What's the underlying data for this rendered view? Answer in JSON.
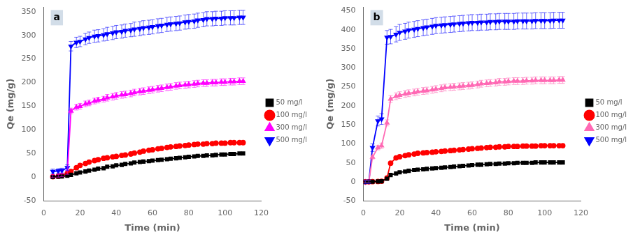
{
  "chart_data": [
    {
      "type": "line",
      "annotations": [
        "a"
      ],
      "xlabel": "Time (min)",
      "ylabel": "Qe (mg/g)",
      "xlim": [
        0,
        120
      ],
      "xticks": [
        0,
        20,
        40,
        60,
        80,
        100,
        120
      ],
      "ylim": [
        -50,
        360
      ],
      "yticks": [
        -50,
        0,
        50,
        100,
        150,
        200,
        250,
        300,
        350
      ],
      "grid": false,
      "legend": "right",
      "series": [
        {
          "name": "50 mg/l",
          "color": "#000000",
          "marker": "square",
          "line_style": "solid",
          "x": [
            5,
            8,
            10,
            13,
            15,
            18,
            20,
            23,
            25,
            28,
            30,
            33,
            35,
            38,
            40,
            43,
            45,
            48,
            50,
            53,
            55,
            58,
            60,
            63,
            65,
            68,
            70,
            73,
            75,
            78,
            80,
            83,
            85,
            88,
            90,
            93,
            95,
            98,
            100,
            103,
            105,
            108,
            110
          ],
          "values": [
            0.5,
            1.0,
            1.5,
            3,
            5,
            8,
            10,
            12,
            14,
            16,
            18,
            19,
            22,
            23,
            25,
            26,
            28,
            29,
            31,
            32,
            33,
            34,
            35,
            36,
            37,
            38,
            39,
            40,
            41,
            42,
            43,
            44,
            45,
            45,
            46,
            46,
            47,
            48,
            48,
            49,
            49,
            50,
            50
          ]
        },
        {
          "name": "100 mg/l",
          "color": "#ff0000",
          "marker": "circle",
          "line_style": "solid",
          "x": [
            5,
            8,
            10,
            13,
            15,
            18,
            20,
            23,
            25,
            28,
            30,
            33,
            35,
            38,
            40,
            43,
            45,
            48,
            50,
            53,
            55,
            58,
            60,
            63,
            65,
            68,
            70,
            73,
            75,
            78,
            80,
            83,
            85,
            88,
            90,
            93,
            95,
            98,
            100,
            103,
            105,
            108,
            110
          ],
          "values": [
            1,
            2,
            3,
            8,
            12,
            20,
            25,
            29,
            32,
            35,
            37,
            40,
            41,
            43,
            44,
            46,
            47,
            49,
            51,
            53,
            55,
            57,
            58,
            60,
            61,
            63,
            64,
            65,
            66,
            67,
            68,
            69,
            70,
            70,
            71,
            71,
            72,
            72,
            72,
            73,
            73,
            73,
            73
          ]
        },
        {
          "name": "300 mg/l",
          "color": "#ff00ff",
          "marker": "triangle-up",
          "line_style": "solid",
          "x": [
            5,
            8,
            10,
            13,
            15,
            18,
            20,
            23,
            25,
            28,
            30,
            33,
            35,
            38,
            40,
            43,
            45,
            48,
            50,
            53,
            55,
            58,
            60,
            63,
            65,
            68,
            70,
            73,
            75,
            78,
            80,
            83,
            85,
            88,
            90,
            93,
            95,
            98,
            100,
            103,
            105,
            108,
            110
          ],
          "values": [
            2,
            3,
            4,
            10,
            140,
            148,
            150,
            155,
            157,
            161,
            163,
            165,
            168,
            170,
            172,
            174,
            175,
            177,
            179,
            181,
            182,
            184,
            185,
            187,
            188,
            190,
            191,
            193,
            194,
            195,
            196,
            197,
            198,
            199,
            199,
            200,
            200,
            201,
            201,
            202,
            202,
            203,
            203
          ],
          "yerr": [
            3,
            3,
            3,
            4,
            6,
            6,
            6,
            6,
            6,
            6,
            6,
            6,
            7,
            7,
            7,
            7,
            7,
            7,
            7,
            7,
            7,
            7,
            7,
            7,
            7,
            7,
            7,
            7,
            7,
            7,
            7,
            7,
            7,
            7,
            7,
            7,
            7,
            7,
            7,
            7,
            7,
            7,
            7
          ]
        },
        {
          "name": "500 mg/l",
          "color": "#0000ff",
          "marker": "triangle-down",
          "line_style": "solid",
          "x": [
            5,
            8,
            10,
            13,
            15,
            18,
            20,
            23,
            25,
            28,
            30,
            33,
            35,
            38,
            40,
            43,
            45,
            48,
            50,
            53,
            55,
            58,
            60,
            63,
            65,
            68,
            70,
            73,
            75,
            78,
            80,
            83,
            85,
            88,
            90,
            93,
            95,
            98,
            100,
            103,
            105,
            108,
            110
          ],
          "values": [
            12,
            13,
            14,
            20,
            277,
            285,
            287,
            292,
            295,
            298,
            299,
            301,
            303,
            305,
            307,
            308,
            310,
            311,
            313,
            314,
            316,
            317,
            318,
            320,
            321,
            323,
            324,
            325,
            326,
            328,
            329,
            330,
            332,
            333,
            335,
            335,
            336,
            336,
            337,
            337,
            337,
            338,
            338
          ],
          "yerr": [
            5,
            5,
            5,
            6,
            10,
            11,
            11,
            12,
            12,
            13,
            13,
            13,
            14,
            14,
            14,
            14,
            14,
            14,
            15,
            15,
            15,
            15,
            15,
            15,
            15,
            15,
            15,
            15,
            15,
            15,
            15,
            15,
            15,
            15,
            15,
            15,
            15,
            15,
            15,
            15,
            15,
            15,
            15
          ]
        }
      ]
    },
    {
      "type": "line",
      "annotations": [
        "b"
      ],
      "xlabel": "Time (min)",
      "ylabel": "Qe (mg/g)",
      "xlim": [
        0,
        120
      ],
      "xticks": [
        0,
        20,
        40,
        60,
        80,
        100,
        120
      ],
      "ylim": [
        -50,
        460
      ],
      "yticks": [
        -50,
        0,
        50,
        100,
        150,
        200,
        250,
        300,
        350,
        400,
        450
      ],
      "grid": false,
      "legend": "right",
      "series": [
        {
          "name": "50 mg/l",
          "color": "#000000",
          "marker": "square",
          "line_style": "solid",
          "x": [
            1,
            3,
            5,
            8,
            10,
            13,
            15,
            18,
            20,
            23,
            25,
            28,
            30,
            33,
            35,
            38,
            40,
            43,
            45,
            48,
            50,
            53,
            55,
            58,
            60,
            63,
            65,
            68,
            70,
            73,
            75,
            78,
            80,
            83,
            85,
            88,
            90,
            93,
            95,
            98,
            100,
            103,
            105,
            108,
            110
          ],
          "values": [
            0,
            0.2,
            0.5,
            1,
            1.5,
            8,
            18,
            22,
            25,
            27,
            29,
            31,
            32,
            33,
            34,
            35,
            36,
            37,
            38,
            39,
            40,
            41,
            42,
            43,
            44,
            45,
            45,
            46,
            47,
            47,
            48,
            48,
            49,
            49,
            50,
            50,
            50,
            50,
            51,
            51,
            51,
            51,
            51,
            51,
            51
          ]
        },
        {
          "name": "100 mg/l",
          "color": "#ff0000",
          "marker": "circle",
          "line_style": "solid",
          "x": [
            1,
            3,
            5,
            8,
            10,
            13,
            15,
            18,
            20,
            23,
            25,
            28,
            30,
            33,
            35,
            38,
            40,
            43,
            45,
            48,
            50,
            53,
            55,
            58,
            60,
            63,
            65,
            68,
            70,
            73,
            75,
            78,
            80,
            83,
            85,
            88,
            90,
            93,
            95,
            98,
            100,
            103,
            105,
            108,
            110
          ],
          "values": [
            0,
            0.2,
            0.5,
            1,
            1.5,
            10,
            49,
            63,
            66,
            69,
            71,
            73,
            75,
            76,
            77,
            78,
            79,
            80,
            81,
            82,
            83,
            84,
            85,
            86,
            87,
            88,
            89,
            90,
            91,
            91,
            92,
            92,
            93,
            93,
            93,
            94,
            94,
            94,
            94,
            95,
            95,
            95,
            95,
            95,
            95
          ]
        },
        {
          "name": "300 mg/l",
          "color": "#ff69b4",
          "marker": "triangle-up",
          "line_style": "solid",
          "x": [
            1,
            3,
            5,
            8,
            10,
            13,
            15,
            18,
            20,
            23,
            25,
            28,
            30,
            33,
            35,
            38,
            40,
            43,
            45,
            48,
            50,
            53,
            55,
            58,
            60,
            63,
            65,
            68,
            70,
            73,
            75,
            78,
            80,
            83,
            85,
            88,
            90,
            93,
            95,
            98,
            100,
            103,
            105,
            108,
            110
          ],
          "values": [
            0,
            0.5,
            65,
            90,
            95,
            155,
            218,
            225,
            228,
            231,
            233,
            235,
            237,
            239,
            240,
            242,
            244,
            246,
            248,
            249,
            250,
            251,
            252,
            253,
            254,
            256,
            258,
            259,
            260,
            261,
            263,
            263,
            264,
            265,
            265,
            265,
            266,
            266,
            267,
            267,
            267,
            267,
            267,
            268,
            268
          ],
          "yerr": [
            3,
            3,
            5,
            6,
            7,
            8,
            9,
            9,
            9,
            9,
            9,
            9,
            9,
            9,
            9,
            9,
            9,
            9,
            9,
            9,
            9,
            9,
            9,
            9,
            9,
            9,
            9,
            9,
            9,
            9,
            9,
            9,
            9,
            9,
            9,
            9,
            9,
            9,
            9,
            9,
            9,
            9,
            9,
            9,
            9
          ]
        },
        {
          "name": "500 mg/l",
          "color": "#0000ff",
          "marker": "triangle-down",
          "line_style": "solid",
          "x": [
            1,
            3,
            5,
            8,
            10,
            13,
            15,
            18,
            20,
            23,
            25,
            28,
            30,
            33,
            35,
            38,
            40,
            43,
            45,
            48,
            50,
            53,
            55,
            58,
            60,
            63,
            65,
            68,
            70,
            73,
            75,
            78,
            80,
            83,
            85,
            88,
            90,
            93,
            95,
            98,
            100,
            103,
            105,
            108,
            110
          ],
          "values": [
            0,
            0.5,
            90,
            160,
            165,
            380,
            382,
            388,
            393,
            396,
            399,
            401,
            403,
            405,
            407,
            409,
            411,
            412,
            413,
            414,
            415,
            416,
            417,
            418,
            419,
            419,
            420,
            420,
            421,
            421,
            422,
            422,
            422,
            422,
            423,
            423,
            423,
            423,
            424,
            424,
            424,
            424,
            425,
            425,
            425
          ],
          "yerr": [
            5,
            5,
            10,
            13,
            14,
            18,
            19,
            20,
            21,
            21,
            21,
            21,
            21,
            21,
            21,
            21,
            21,
            21,
            21,
            21,
            21,
            21,
            21,
            21,
            21,
            21,
            21,
            21,
            21,
            21,
            21,
            21,
            21,
            21,
            21,
            21,
            21,
            21,
            21,
            21,
            21,
            21,
            21,
            21,
            21
          ]
        }
      ]
    }
  ]
}
